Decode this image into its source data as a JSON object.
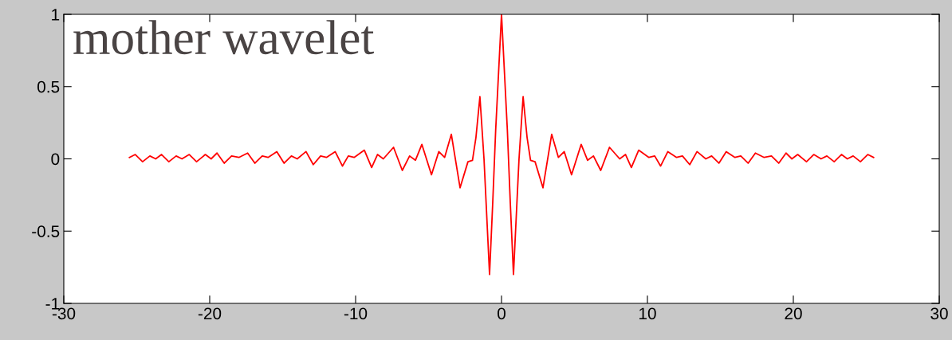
{
  "chart_data": {
    "type": "line",
    "x": [
      -25.5,
      -25.1,
      -24.6,
      -24.1,
      -23.7,
      -23.3,
      -22.8,
      -22.3,
      -21.9,
      -21.4,
      -20.9,
      -20.3,
      -19.9,
      -19.5,
      -19.0,
      -18.5,
      -18.0,
      -17.4,
      -16.9,
      -16.4,
      -16.0,
      -15.4,
      -14.9,
      -14.4,
      -14.0,
      -13.4,
      -12.9,
      -12.4,
      -12.0,
      -11.4,
      -10.9,
      -10.5,
      -10.1,
      -9.4,
      -8.9,
      -8.5,
      -8.1,
      -7.4,
      -6.8,
      -6.3,
      -5.9,
      -5.46,
      -4.8,
      -4.3,
      -3.9,
      -3.44,
      -2.84,
      -2.3,
      -1.99,
      -1.75,
      -1.48,
      -1.2,
      -0.82,
      -0.6,
      -0.4,
      -0.2,
      0,
      0.2,
      0.4,
      0.6,
      0.82,
      1.2,
      1.48,
      1.75,
      1.99,
      2.3,
      2.84,
      3.44,
      3.9,
      4.3,
      4.8,
      5.46,
      5.9,
      6.3,
      6.8,
      7.4,
      8.1,
      8.5,
      8.9,
      9.4,
      10.1,
      10.5,
      10.9,
      11.4,
      12.0,
      12.4,
      12.9,
      13.4,
      14.0,
      14.4,
      14.9,
      15.4,
      16.0,
      16.4,
      16.9,
      17.4,
      18.0,
      18.5,
      19.0,
      19.5,
      19.9,
      20.3,
      20.9,
      21.4,
      21.9,
      22.3,
      22.8,
      23.3,
      23.7,
      24.1,
      24.6,
      25.1,
      25.5
    ],
    "series": [
      {
        "color": "#ff0000",
        "values": [
          0.01,
          0.03,
          -0.02,
          0.02,
          0.0,
          0.03,
          -0.02,
          0.02,
          0.0,
          0.03,
          -0.02,
          0.03,
          0.0,
          0.04,
          -0.03,
          0.02,
          0.01,
          0.04,
          -0.03,
          0.02,
          0.01,
          0.05,
          -0.03,
          0.02,
          0.0,
          0.05,
          -0.04,
          0.02,
          0.01,
          0.05,
          -0.05,
          0.02,
          0.01,
          0.06,
          -0.06,
          0.03,
          0.0,
          0.08,
          -0.08,
          0.02,
          -0.01,
          0.1,
          -0.11,
          0.05,
          0.01,
          0.17,
          -0.2,
          -0.02,
          -0.01,
          0.15,
          0.43,
          0.0,
          -0.8,
          -0.3,
          0.2,
          0.6,
          1.0,
          0.6,
          0.2,
          -0.3,
          -0.8,
          0.0,
          0.43,
          0.15,
          -0.01,
          -0.02,
          -0.2,
          0.17,
          0.01,
          0.05,
          -0.11,
          0.1,
          -0.01,
          0.02,
          -0.08,
          0.08,
          0.0,
          0.03,
          -0.06,
          0.06,
          0.01,
          0.02,
          -0.05,
          0.05,
          0.01,
          0.02,
          -0.04,
          0.05,
          0.0,
          0.02,
          -0.03,
          0.05,
          0.01,
          0.02,
          -0.03,
          0.04,
          0.01,
          0.02,
          -0.03,
          0.04,
          0.0,
          0.03,
          -0.02,
          0.03,
          0.0,
          0.02,
          -0.02,
          0.03,
          0.0,
          0.02,
          -0.02,
          0.03,
          0.01
        ]
      }
    ],
    "xlim": [
      -30,
      30
    ],
    "xticks": [
      -30,
      -20,
      -10,
      0,
      10,
      20,
      30
    ],
    "ylim": [
      -1,
      1
    ],
    "yticks": [
      -1,
      -0.5,
      0,
      0.5,
      1
    ],
    "annotations": [
      "mother wavelet"
    ],
    "grid": false,
    "legend": false
  }
}
